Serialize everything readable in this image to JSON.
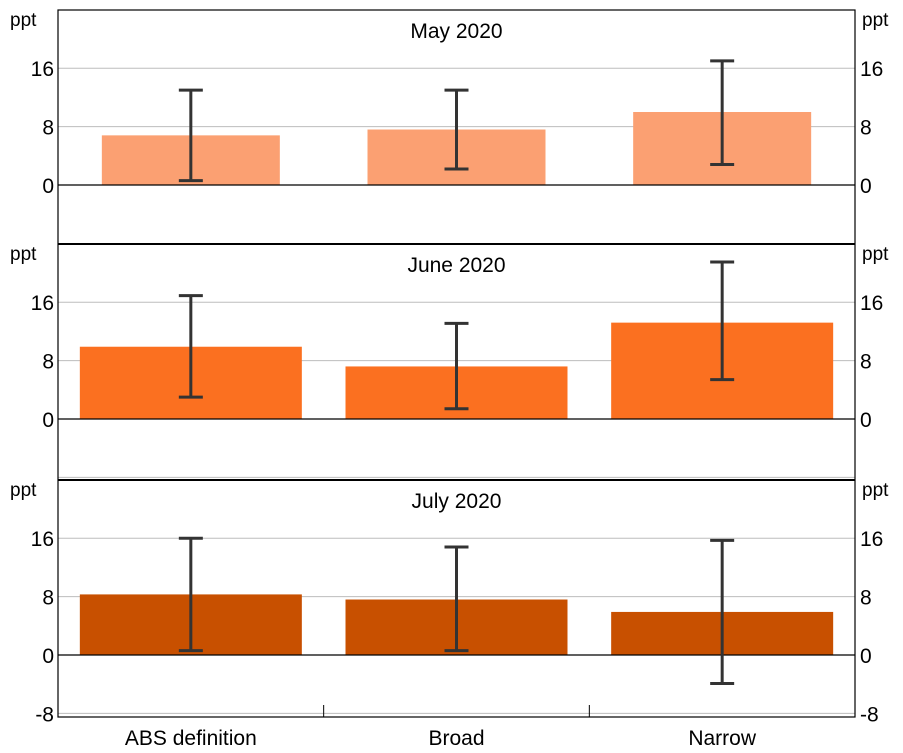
{
  "chart_data": {
    "type": "bar",
    "categories": [
      "ABS definition",
      "Broad",
      "Narrow"
    ],
    "y_unit": "ppt",
    "yticks": [
      -8,
      0,
      8,
      16
    ],
    "ylim": [
      -8,
      24
    ],
    "grid": true,
    "panels": [
      {
        "title": "May 2020",
        "color": "#FBA072",
        "values": [
          6.8,
          7.6,
          10.0
        ],
        "error_low": [
          0.6,
          2.2,
          2.8
        ],
        "error_high": [
          13.0,
          13.0,
          17.0
        ]
      },
      {
        "title": "June 2020",
        "color": "#FB7020",
        "values": [
          9.9,
          7.2,
          13.2
        ],
        "error_low": [
          3.0,
          1.4,
          5.4
        ],
        "error_high": [
          16.9,
          13.1,
          21.5
        ]
      },
      {
        "title": "July 2020",
        "color": "#C85000",
        "values": [
          8.3,
          7.6,
          5.9
        ],
        "error_low": [
          0.6,
          0.6,
          -3.9
        ],
        "error_high": [
          16.0,
          14.8,
          15.7
        ]
      }
    ]
  }
}
